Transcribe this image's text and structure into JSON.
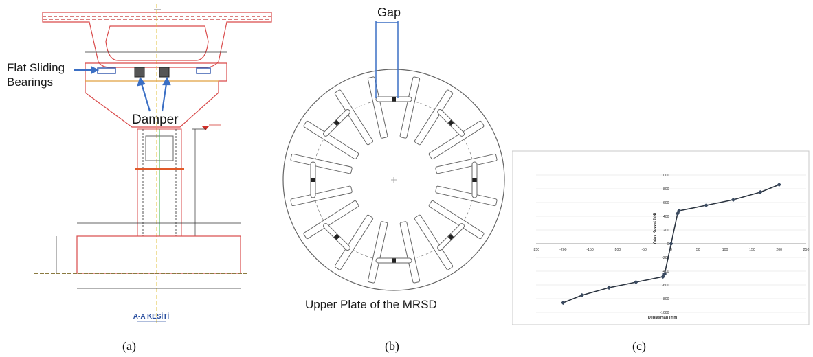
{
  "panels": {
    "a": {
      "caption": "(a)",
      "labels": {
        "bearings": "Flat Sliding\nBearings",
        "damper": "Damper",
        "section_title": "A-A KESİTİ"
      }
    },
    "b": {
      "caption": "(b)",
      "labels": {
        "gap": "Gap",
        "plate": "Upper Plate of the MRSD"
      }
    },
    "c": {
      "caption": "(c)",
      "chart_data": {
        "type": "line",
        "title": "",
        "xlabel": "Deplasman (mm)",
        "ylabel": "Yatay Kuvvet (kN)",
        "xlim": [
          -250,
          250
        ],
        "ylim": [
          -1000,
          1000
        ],
        "xticks": [
          -250,
          -200,
          -150,
          -100,
          -50,
          0,
          50,
          100,
          150,
          200,
          250
        ],
        "yticks": [
          -1000,
          -800,
          -600,
          -400,
          -200,
          0,
          200,
          400,
          600,
          800,
          1000
        ],
        "grid": true,
        "line_color": "#2b3440",
        "series": [
          {
            "x": [
              -200,
              -165,
              -115,
              -65,
              -15,
              -12,
              0,
              12,
              15,
              65,
              115,
              165,
              200
            ],
            "y": [
              -860,
              -750,
              -640,
              -560,
              -480,
              -440,
              0,
              440,
              480,
              560,
              640,
              750,
              860
            ]
          }
        ]
      }
    }
  }
}
